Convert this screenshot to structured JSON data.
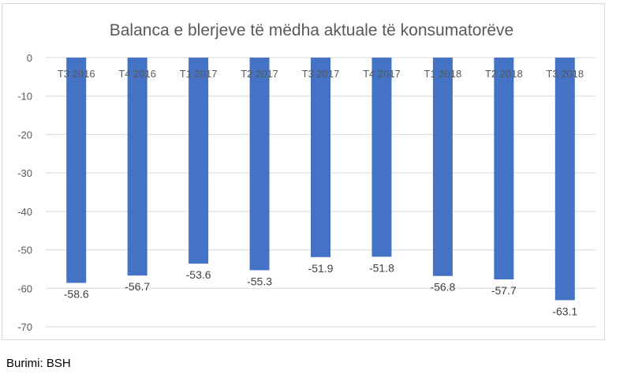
{
  "chart_data": {
    "type": "bar",
    "title": "Balanca e blerjeve të mëdha aktuale të konsumatorëve",
    "categories": [
      "T3 2016",
      "T4 2016",
      "T1 2017",
      "T2 2017",
      "T3 2017",
      "T4 2017",
      "T1 2018",
      "T2 2018",
      "T3 2018"
    ],
    "values": [
      -58.6,
      -56.7,
      -53.6,
      -55.3,
      -51.9,
      -51.8,
      -56.8,
      -57.7,
      -63.1
    ],
    "value_labels": [
      "-58.6",
      "-56.7",
      "-53.6",
      "-55.3",
      "-51.9",
      "-51.8",
      "-56.8",
      "-57.7",
      "-63.1"
    ],
    "ylim": [
      -70,
      0
    ],
    "yticks": [
      0,
      -10,
      -20,
      -30,
      -40,
      -50,
      -60,
      -70
    ],
    "ytick_labels": [
      "0",
      "-10",
      "-20",
      "-30",
      "-40",
      "-50",
      "-60",
      "-70"
    ],
    "xlabel": "",
    "ylabel": "",
    "grid": true,
    "legend": "none",
    "colors": {
      "bar": "#4472c4",
      "grid": "#d9d9d9",
      "text": "#595959",
      "title": "#595959"
    }
  },
  "source": "Burimi: BSH"
}
